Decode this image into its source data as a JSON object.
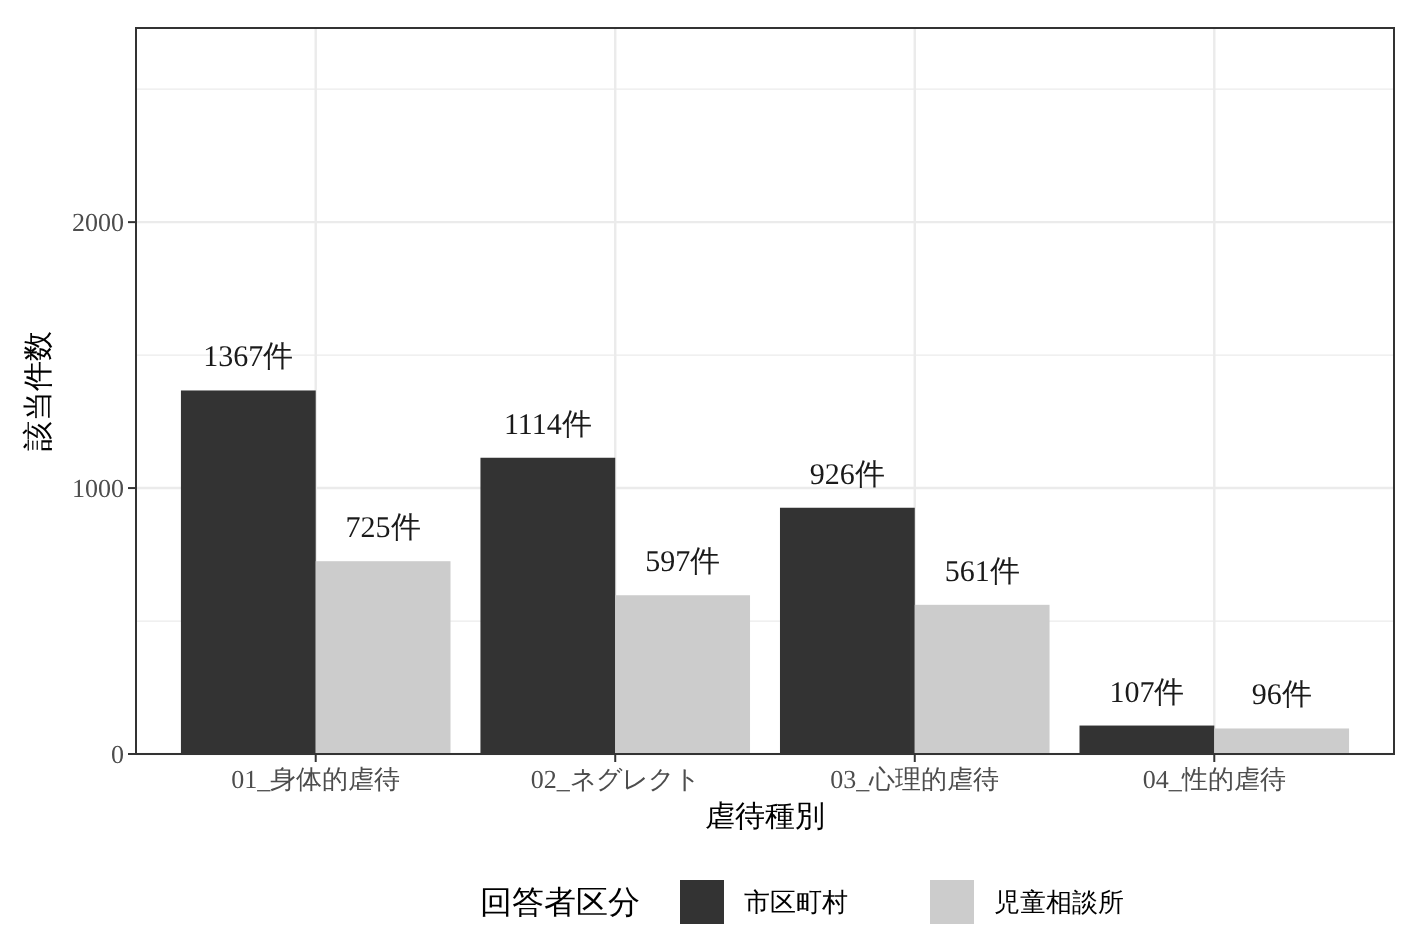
{
  "chart_data": {
    "type": "bar",
    "xlabel": "虐待種別",
    "ylabel": "該当件数",
    "legend_title": "回答者区分",
    "legend": "bottom",
    "grid": true,
    "categories": [
      "01_身体的虐待",
      "02_ネグレクト",
      "03_心理的虐待",
      "04_性的虐待"
    ],
    "series": [
      {
        "name": "市区町村",
        "color": "#333333",
        "values": [
          1367,
          1114,
          926,
          107
        ],
        "value_labels": [
          "1367件",
          "1114件",
          "926件",
          "107件"
        ]
      },
      {
        "name": "児童相談所",
        "color": "#cccccc",
        "values": [
          725,
          597,
          561,
          96
        ],
        "value_labels": [
          "725件",
          "597件",
          "561件",
          "96件"
        ]
      }
    ],
    "ylim": [
      0,
      2730
    ],
    "yticks": [
      0,
      {
        "value": 500,
        "label": null
      },
      1000,
      {
        "value": 1500,
        "label": null
      },
      2000,
      {
        "value": 2500,
        "label": null
      }
    ]
  }
}
